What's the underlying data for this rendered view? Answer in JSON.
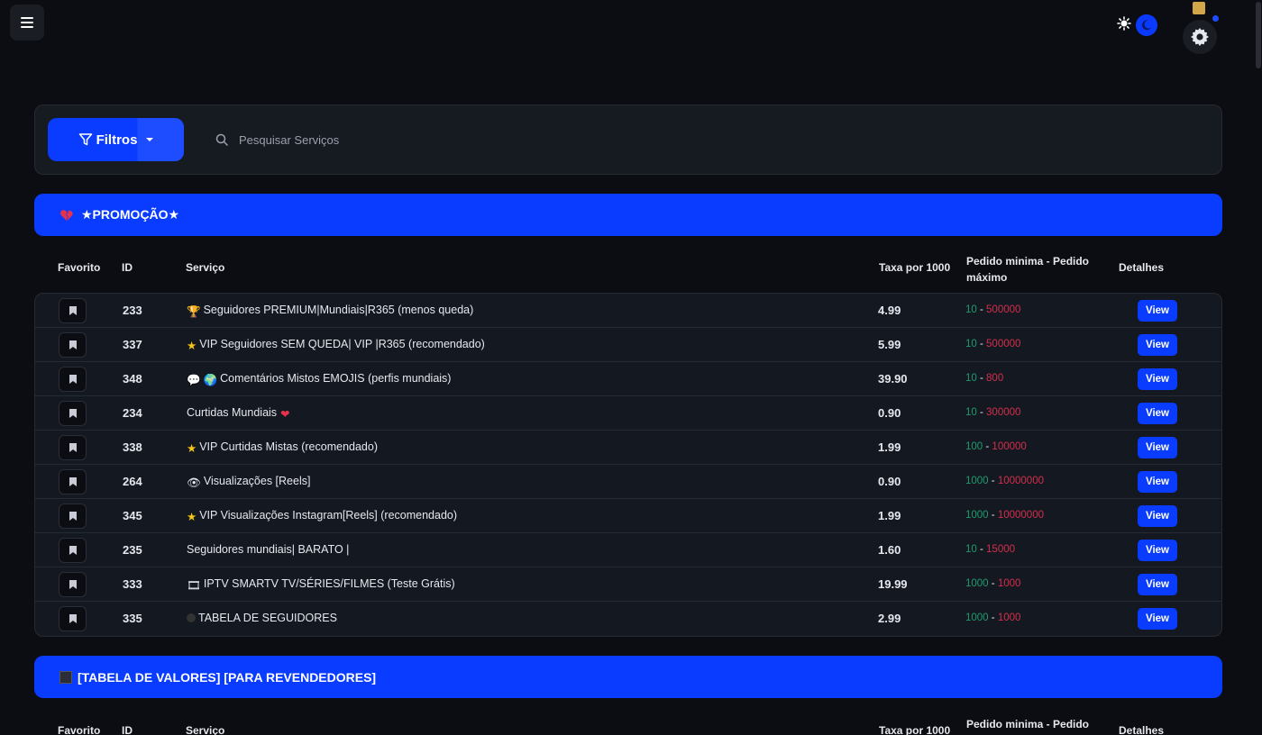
{
  "search": {
    "placeholder": "Pesquisar Serviços"
  },
  "filters": {
    "label": "Filtros"
  },
  "columns": {
    "favorite": "Favorito",
    "id": "ID",
    "service": "Serviço",
    "rate": "Taxa por 1000",
    "minmax": "Pedido minima - Pedido máximo",
    "details": "Detalhes"
  },
  "categories": [
    {
      "title": "★PROMOÇÃO★",
      "services": [
        {
          "id": "233",
          "name": "Seguidores PREMIUM|Mundiais|R365 (menos queda)",
          "rate": "4.99",
          "min": "10",
          "max": "500000",
          "view": "View"
        },
        {
          "id": "337",
          "name": "VIP Seguidores SEM QUEDA| VIP |R365 (recomendado)",
          "rate": "5.99",
          "min": "10",
          "max": "500000",
          "view": "View"
        },
        {
          "id": "348",
          "name": "Comentários Mistos EMOJIS (perfis mundiais)",
          "rate": "39.90",
          "min": "10",
          "max": "800",
          "view": "View"
        },
        {
          "id": "234",
          "name": "Curtidas Mundiais",
          "rate": "0.90",
          "min": "10",
          "max": "300000",
          "view": "View"
        },
        {
          "id": "338",
          "name": "VIP Curtidas Mistas (recomendado)",
          "rate": "1.99",
          "min": "100",
          "max": "100000",
          "view": "View"
        },
        {
          "id": "264",
          "name": "Visualizações [Reels]",
          "rate": "0.90",
          "min": "1000",
          "max": "10000000",
          "view": "View"
        },
        {
          "id": "345",
          "name": "VIP Visualizações Instagram[Reels] (recomendado)",
          "rate": "1.99",
          "min": "1000",
          "max": "10000000",
          "view": "View"
        },
        {
          "id": "235",
          "name": "Seguidores mundiais| BARATO |",
          "rate": "1.60",
          "min": "10",
          "max": "15000",
          "view": "View"
        },
        {
          "id": "333",
          "name": "IPTV SMARTV TV/SÉRIES/FILMES (Teste Grátis)",
          "rate": "19.99",
          "min": "1000",
          "max": "1000",
          "view": "View"
        },
        {
          "id": "335",
          "name": "TABELA DE SEGUIDORES",
          "rate": "2.99",
          "min": "1000",
          "max": "1000",
          "view": "View"
        }
      ]
    },
    {
      "title": "[TABELA DE VALORES] [PARA REVENDEDORES]"
    }
  ],
  "colors": {
    "accent": "#0a3cff",
    "min": "#1f9c6f",
    "max": "#d32f4d"
  }
}
